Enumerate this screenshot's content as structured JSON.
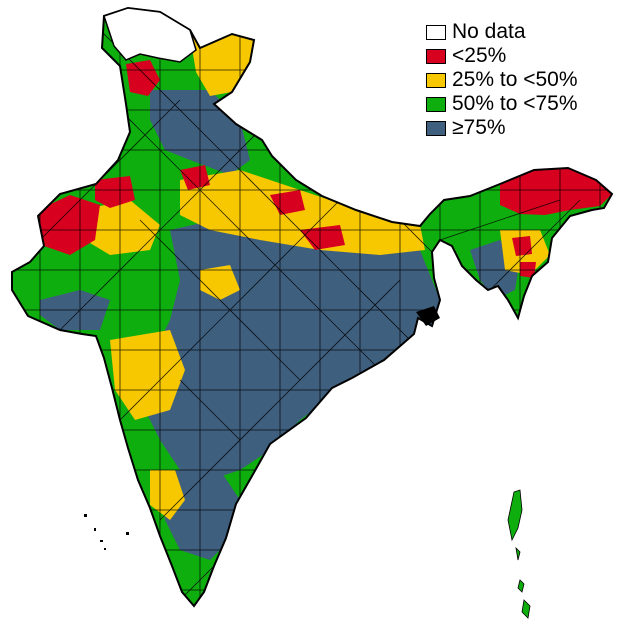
{
  "map": {
    "categories": [
      {
        "id": "nodata",
        "label": "No data",
        "color": "#ffffff"
      },
      {
        "id": "lt25",
        "label": "<25%",
        "color": "#d7001f"
      },
      {
        "id": "25to50",
        "label": "25% to <50%",
        "color": "#f7c700"
      },
      {
        "id": "50to75",
        "label": "50% to <75%",
        "color": "#0fae0f"
      },
      {
        "id": "ge75",
        "label": "≥75%",
        "color": "#3f5f7f"
      }
    ]
  }
}
